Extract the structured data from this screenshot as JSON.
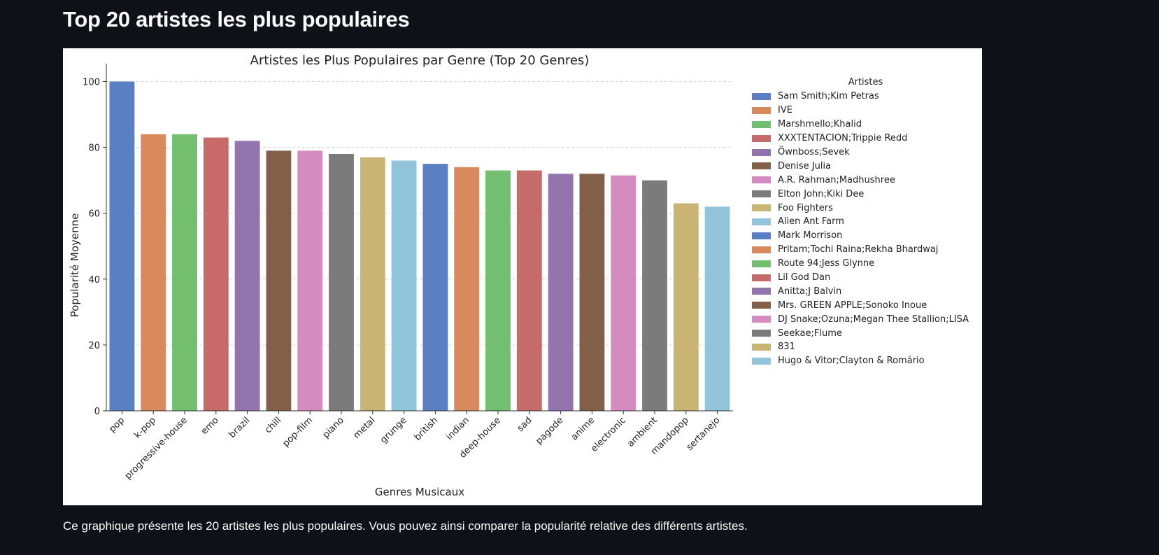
{
  "page": {
    "title": "Top 20 artistes les plus populaires",
    "caption": "Ce graphique présente les 20 artistes les plus populaires. Vous pouvez ainsi comparer la popularité relative des différents artistes."
  },
  "chart_data": {
    "type": "bar",
    "title": "Artistes les Plus Populaires par Genre (Top 20 Genres)",
    "xlabel": "Genres Musicaux",
    "ylabel": "Popularité Moyenne",
    "ylim": [
      0,
      105
    ],
    "yticks": [
      0,
      20,
      40,
      60,
      80,
      100
    ],
    "grid": "horizontal dashed",
    "legend_title": "Artistes",
    "legend_position": "right",
    "categories": [
      "pop",
      "k-pop",
      "progressive-house",
      "emo",
      "brazil",
      "chill",
      "pop-film",
      "piano",
      "metal",
      "grunge",
      "british",
      "indian",
      "deep-house",
      "sad",
      "pagode",
      "anime",
      "electronic",
      "ambient",
      "mandopop",
      "sertanejo"
    ],
    "values": [
      100,
      84,
      84,
      83,
      82,
      79,
      79,
      78,
      77,
      76,
      75,
      74,
      73,
      73,
      72,
      72,
      71.5,
      70,
      63,
      62
    ],
    "artists": [
      "Sam Smith;Kim Petras",
      "IVE",
      "Marshmello;Khalid",
      "XXXTENTACION;Trippie Redd",
      "Öwnboss;Sevek",
      "Denise Julia",
      "A.R. Rahman;Madhushree",
      "Elton John;Kiki Dee",
      "Foo Fighters",
      "Alien Ant Farm",
      "Mark Morrison",
      "Pritam;Tochi Raina;Rekha Bhardwaj",
      "Route 94;Jess Glynne",
      "Lil God Dan",
      "Anitta;J Balvin",
      "Mrs. GREEN APPLE;Sonoko Inoue",
      "DJ Snake;Ozuna;Megan Thee Stallion;LISA",
      "Seekae;Flume",
      "831",
      "Hugo & Vitor;Clayton & Romário"
    ],
    "colors": [
      "#5b7fc4",
      "#d98a5d",
      "#72c06f",
      "#c76a6a",
      "#9474af",
      "#845f47",
      "#d48bc0",
      "#7b7b7b",
      "#c8b573",
      "#92c5db",
      "#5b7fc4",
      "#d98a5d",
      "#72c06f",
      "#c76a6a",
      "#9474af",
      "#845f47",
      "#d48bc0",
      "#7b7b7b",
      "#c8b573",
      "#92c5db"
    ]
  }
}
